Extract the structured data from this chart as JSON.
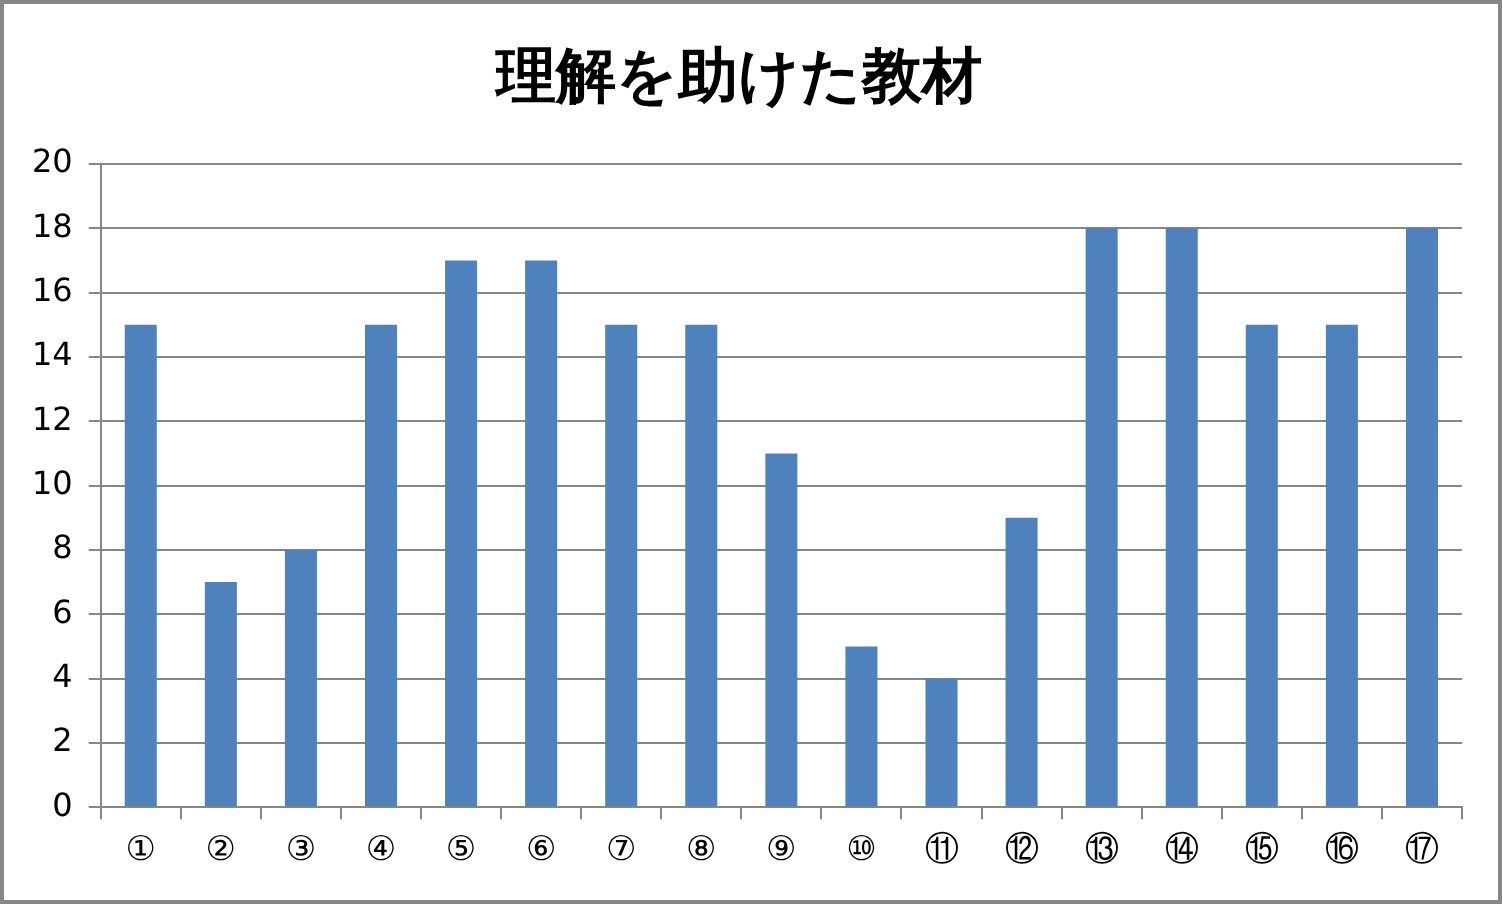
{
  "chart_data": {
    "type": "bar",
    "title": "理解を助けた教材",
    "categories": [
      "①",
      "②",
      "③",
      "④",
      "⑤",
      "⑥",
      "⑦",
      "⑧",
      "⑨",
      "⑩",
      "⑪",
      "⑫",
      "⑬",
      "⑭",
      "⑮",
      "⑯",
      "⑰"
    ],
    "values": [
      15,
      7,
      8,
      15,
      17,
      17,
      15,
      15,
      11,
      5,
      4,
      9,
      18,
      18,
      15,
      15,
      18
    ],
    "color": "#4f81bd",
    "ylim": [
      0,
      20
    ],
    "yticks": [
      0,
      2,
      4,
      6,
      8,
      10,
      12,
      14,
      16,
      18,
      20
    ],
    "grid": "y"
  }
}
